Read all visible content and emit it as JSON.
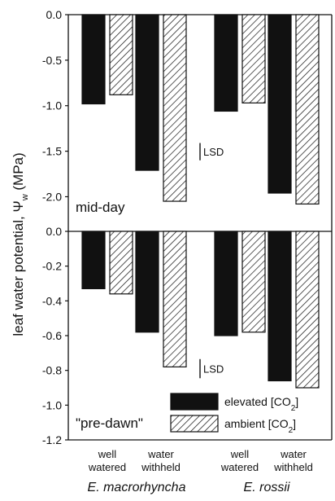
{
  "chart_data": {
    "type": "bar",
    "ylabel": "leaf water potential,  Ψw (MPa)",
    "ylabel_main": "leaf water potential,  Ψ",
    "ylabel_sub": "w",
    "ylabel_unit": " (MPa)",
    "legend": {
      "placement": "bottom-right of lower panel",
      "entries": [
        {
          "prefix": "elevated [CO",
          "sub": "2",
          "suffix": "]"
        },
        {
          "prefix": "ambient [CO",
          "sub": "2",
          "suffix": "]"
        }
      ]
    },
    "groups": [
      {
        "species": "E. macrorhyncha",
        "treatments": [
          {
            "line1": "well",
            "line2": "watered"
          },
          {
            "line1": "water",
            "line2": "withheld"
          }
        ]
      },
      {
        "species": "E. rossii",
        "treatments": [
          {
            "line1": "well",
            "line2": "watered"
          },
          {
            "line1": "water",
            "line2": "withheld"
          }
        ]
      }
    ],
    "panels": [
      {
        "label": "mid-day",
        "ylim": [
          -2.3,
          0
        ],
        "yticks": [
          "0.0",
          "-0.5",
          "-1.0",
          "-1.5",
          "-2.0"
        ],
        "ytick_values": [
          0,
          -0.5,
          -1.0,
          -1.5,
          -2.0
        ],
        "lsd": {
          "text": "LSD",
          "from": -1.41,
          "to": -1.6
        },
        "values": {
          "elevated": [
            -0.98,
            -1.71,
            -1.06,
            -1.96
          ],
          "ambient": [
            -0.88,
            -2.05,
            -0.97,
            -2.08
          ]
        }
      },
      {
        "label": "\"pre-dawn\"",
        "ylim": [
          -1.2,
          0
        ],
        "yticks": [
          "0.0",
          "-0.2",
          "-0.4",
          "-0.6",
          "-0.8",
          "-1.0",
          "-1.2"
        ],
        "ytick_values": [
          0,
          -0.2,
          -0.4,
          -0.6,
          -0.8,
          -1.0,
          -1.2
        ],
        "lsd": {
          "text": "LSD",
          "from": -0.735,
          "to": -0.845
        },
        "values": {
          "elevated": [
            -0.33,
            -0.58,
            -0.6,
            -0.86
          ],
          "ambient": [
            -0.36,
            -0.78,
            -0.58,
            -0.9
          ]
        }
      }
    ]
  }
}
